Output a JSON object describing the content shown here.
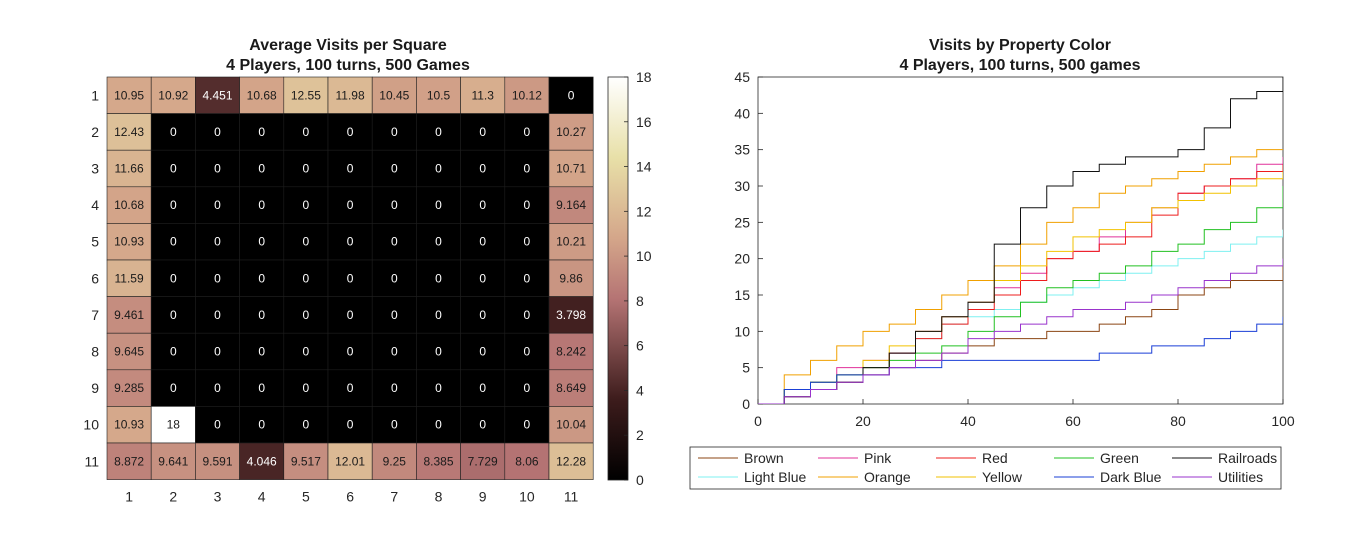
{
  "chart_data": [
    {
      "type": "heatmap",
      "title": "Average Visits per Square",
      "subtitle": "4 Players, 100 turns, 500 Games",
      "x_labels": [
        "1",
        "2",
        "3",
        "4",
        "5",
        "6",
        "7",
        "8",
        "9",
        "10",
        "11"
      ],
      "y_labels": [
        "1",
        "2",
        "3",
        "4",
        "5",
        "6",
        "7",
        "8",
        "9",
        "10",
        "11"
      ],
      "colorbar": {
        "range": [
          0,
          18
        ],
        "ticks": [
          "0",
          "2",
          "4",
          "6",
          "8",
          "10",
          "12",
          "14",
          "16",
          "18"
        ]
      },
      "values": [
        [
          "10.95",
          "10.92",
          "4.451",
          "10.68",
          "12.55",
          "11.98",
          "10.45",
          "10.5",
          "11.3",
          "10.12",
          "0"
        ],
        [
          "12.43",
          "0",
          "0",
          "0",
          "0",
          "0",
          "0",
          "0",
          "0",
          "0",
          "10.27"
        ],
        [
          "11.66",
          "0",
          "0",
          "0",
          "0",
          "0",
          "0",
          "0",
          "0",
          "0",
          "10.71"
        ],
        [
          "10.68",
          "0",
          "0",
          "0",
          "0",
          "0",
          "0",
          "0",
          "0",
          "0",
          "9.164"
        ],
        [
          "10.93",
          "0",
          "0",
          "0",
          "0",
          "0",
          "0",
          "0",
          "0",
          "0",
          "10.21"
        ],
        [
          "11.59",
          "0",
          "0",
          "0",
          "0",
          "0",
          "0",
          "0",
          "0",
          "0",
          "9.86"
        ],
        [
          "9.461",
          "0",
          "0",
          "0",
          "0",
          "0",
          "0",
          "0",
          "0",
          "0",
          "3.798"
        ],
        [
          "9.645",
          "0",
          "0",
          "0",
          "0",
          "0",
          "0",
          "0",
          "0",
          "0",
          "8.242"
        ],
        [
          "9.285",
          "0",
          "0",
          "0",
          "0",
          "0",
          "0",
          "0",
          "0",
          "0",
          "8.649"
        ],
        [
          "10.93",
          "18",
          "0",
          "0",
          "0",
          "0",
          "0",
          "0",
          "0",
          "0",
          "10.04"
        ],
        [
          "8.872",
          "9.641",
          "9.591",
          "4.046",
          "9.517",
          "12.01",
          "9.25",
          "8.385",
          "7.729",
          "8.06",
          "12.28"
        ]
      ]
    },
    {
      "type": "line",
      "title": "Visits by Property Color",
      "subtitle": "4 Players, 100 turns, 500 games",
      "xlim": [
        0,
        100
      ],
      "ylim": [
        0,
        45
      ],
      "x_ticks": [
        "0",
        "20",
        "40",
        "60",
        "80",
        "100"
      ],
      "y_ticks": [
        "0",
        "5",
        "10",
        "15",
        "20",
        "25",
        "30",
        "35",
        "40",
        "45"
      ],
      "legend_position": "below",
      "series": [
        {
          "name": "Brown",
          "color": "#8b4513",
          "points": [
            [
              0,
              0
            ],
            [
              5,
              1
            ],
            [
              10,
              2
            ],
            [
              15,
              3
            ],
            [
              20,
              4
            ],
            [
              25,
              5
            ],
            [
              30,
              6
            ],
            [
              35,
              7
            ],
            [
              40,
              8
            ],
            [
              45,
              9
            ],
            [
              50,
              9
            ],
            [
              55,
              10
            ],
            [
              60,
              10
            ],
            [
              65,
              11
            ],
            [
              70,
              12
            ],
            [
              75,
              13
            ],
            [
              80,
              15
            ],
            [
              85,
              16
            ],
            [
              90,
              17
            ],
            [
              95,
              17
            ],
            [
              100,
              20
            ]
          ]
        },
        {
          "name": "Light Blue",
          "color": "#7ff0f0",
          "points": [
            [
              0,
              0
            ],
            [
              5,
              2
            ],
            [
              10,
              3
            ],
            [
              15,
              4
            ],
            [
              20,
              5
            ],
            [
              25,
              7
            ],
            [
              30,
              9
            ],
            [
              35,
              11
            ],
            [
              40,
              12
            ],
            [
              45,
              13
            ],
            [
              50,
              14
            ],
            [
              55,
              15
            ],
            [
              60,
              16
            ],
            [
              65,
              17
            ],
            [
              70,
              18
            ],
            [
              75,
              19
            ],
            [
              80,
              20
            ],
            [
              85,
              21
            ],
            [
              90,
              22
            ],
            [
              95,
              23
            ],
            [
              100,
              24
            ]
          ]
        },
        {
          "name": "Pink",
          "color": "#e0309a",
          "points": [
            [
              0,
              0
            ],
            [
              5,
              2
            ],
            [
              10,
              3
            ],
            [
              15,
              5
            ],
            [
              20,
              6
            ],
            [
              25,
              7
            ],
            [
              30,
              10
            ],
            [
              35,
              12
            ],
            [
              40,
              14
            ],
            [
              45,
              16
            ],
            [
              50,
              18
            ],
            [
              55,
              20
            ],
            [
              60,
              21
            ],
            [
              65,
              23
            ],
            [
              70,
              25
            ],
            [
              75,
              27
            ],
            [
              80,
              29
            ],
            [
              85,
              30
            ],
            [
              90,
              31
            ],
            [
              95,
              33
            ],
            [
              100,
              34
            ]
          ]
        },
        {
          "name": "Orange",
          "color": "#f0a000",
          "points": [
            [
              0,
              0
            ],
            [
              5,
              4
            ],
            [
              10,
              6
            ],
            [
              15,
              8
            ],
            [
              20,
              10
            ],
            [
              25,
              11
            ],
            [
              30,
              13
            ],
            [
              35,
              15
            ],
            [
              40,
              17
            ],
            [
              45,
              19
            ],
            [
              50,
              22
            ],
            [
              55,
              25
            ],
            [
              60,
              27
            ],
            [
              65,
              29
            ],
            [
              70,
              30
            ],
            [
              75,
              31
            ],
            [
              80,
              32
            ],
            [
              85,
              33
            ],
            [
              90,
              34
            ],
            [
              95,
              35
            ],
            [
              100,
              35
            ]
          ]
        },
        {
          "name": "Red",
          "color": "#ee1c1c",
          "points": [
            [
              0,
              0
            ],
            [
              5,
              2
            ],
            [
              10,
              3
            ],
            [
              15,
              4
            ],
            [
              20,
              5
            ],
            [
              25,
              7
            ],
            [
              30,
              9
            ],
            [
              35,
              11
            ],
            [
              40,
              13
            ],
            [
              45,
              15
            ],
            [
              50,
              17
            ],
            [
              55,
              20
            ],
            [
              60,
              21
            ],
            [
              65,
              22
            ],
            [
              70,
              23
            ],
            [
              75,
              26
            ],
            [
              80,
              29
            ],
            [
              85,
              30
            ],
            [
              90,
              31
            ],
            [
              95,
              32
            ],
            [
              100,
              33
            ]
          ]
        },
        {
          "name": "Yellow",
          "color": "#f2c200",
          "points": [
            [
              0,
              0
            ],
            [
              5,
              2
            ],
            [
              10,
              3
            ],
            [
              15,
              4
            ],
            [
              20,
              6
            ],
            [
              25,
              8
            ],
            [
              30,
              10
            ],
            [
              35,
              12
            ],
            [
              40,
              14
            ],
            [
              45,
              17
            ],
            [
              50,
              19
            ],
            [
              55,
              21
            ],
            [
              60,
              23
            ],
            [
              65,
              24
            ],
            [
              70,
              25
            ],
            [
              75,
              27
            ],
            [
              80,
              28
            ],
            [
              85,
              29
            ],
            [
              90,
              30
            ],
            [
              95,
              31
            ],
            [
              100,
              32
            ]
          ]
        },
        {
          "name": "Green",
          "color": "#22c022",
          "points": [
            [
              0,
              0
            ],
            [
              5,
              2
            ],
            [
              10,
              3
            ],
            [
              15,
              4
            ],
            [
              20,
              5
            ],
            [
              25,
              6
            ],
            [
              30,
              7
            ],
            [
              35,
              8
            ],
            [
              40,
              10
            ],
            [
              45,
              12
            ],
            [
              50,
              14
            ],
            [
              55,
              16
            ],
            [
              60,
              17
            ],
            [
              65,
              18
            ],
            [
              70,
              19
            ],
            [
              75,
              21
            ],
            [
              80,
              22
            ],
            [
              85,
              24
            ],
            [
              90,
              25
            ],
            [
              95,
              27
            ],
            [
              100,
              30
            ]
          ]
        },
        {
          "name": "Dark Blue",
          "color": "#1a3fd6",
          "points": [
            [
              0,
              0
            ],
            [
              5,
              2
            ],
            [
              10,
              3
            ],
            [
              15,
              4
            ],
            [
              20,
              4
            ],
            [
              25,
              5
            ],
            [
              30,
              5
            ],
            [
              35,
              6
            ],
            [
              40,
              6
            ],
            [
              45,
              6
            ],
            [
              50,
              6
            ],
            [
              55,
              6
            ],
            [
              60,
              6
            ],
            [
              65,
              7
            ],
            [
              70,
              7
            ],
            [
              75,
              8
            ],
            [
              80,
              8
            ],
            [
              85,
              9
            ],
            [
              90,
              10
            ],
            [
              95,
              11
            ],
            [
              100,
              12
            ]
          ]
        },
        {
          "name": "Railroads",
          "color": "#111111",
          "points": [
            [
              0,
              0
            ],
            [
              5,
              1
            ],
            [
              10,
              2
            ],
            [
              15,
              3
            ],
            [
              20,
              5
            ],
            [
              25,
              7
            ],
            [
              30,
              10
            ],
            [
              35,
              12
            ],
            [
              40,
              14
            ],
            [
              45,
              22
            ],
            [
              50,
              27
            ],
            [
              55,
              30
            ],
            [
              60,
              32
            ],
            [
              65,
              33
            ],
            [
              70,
              34
            ],
            [
              75,
              34
            ],
            [
              80,
              35
            ],
            [
              85,
              38
            ],
            [
              90,
              42
            ],
            [
              95,
              43
            ],
            [
              100,
              46
            ]
          ]
        },
        {
          "name": "Utilities",
          "color": "#9933cc",
          "points": [
            [
              0,
              0
            ],
            [
              5,
              1
            ],
            [
              10,
              2
            ],
            [
              15,
              3
            ],
            [
              20,
              4
            ],
            [
              25,
              5
            ],
            [
              30,
              6
            ],
            [
              35,
              7
            ],
            [
              40,
              9
            ],
            [
              45,
              10
            ],
            [
              50,
              11
            ],
            [
              55,
              12
            ],
            [
              60,
              13
            ],
            [
              65,
              13
            ],
            [
              70,
              14
            ],
            [
              75,
              15
            ],
            [
              80,
              16
            ],
            [
              85,
              17
            ],
            [
              90,
              18
            ],
            [
              95,
              19
            ],
            [
              100,
              20
            ]
          ]
        }
      ]
    }
  ]
}
